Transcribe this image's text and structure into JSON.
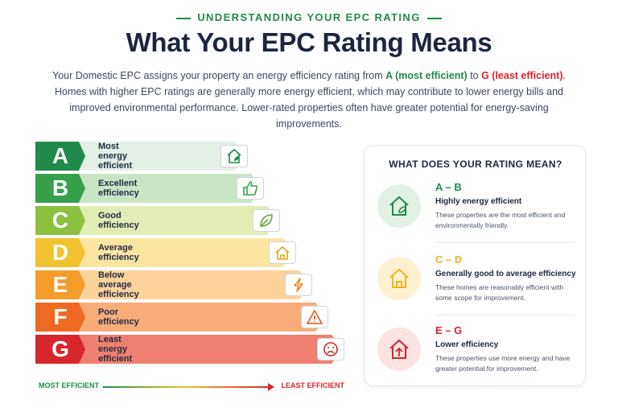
{
  "header": {
    "eyebrow": "UNDERSTANDING YOUR EPC RATING",
    "title": "What Your EPC Rating Means",
    "intro_1": "Your Domestic EPC assigns your property an energy efficiency rating from ",
    "intro_a": "A (most efficient)",
    "intro_to": " to ",
    "intro_g": "G (least efficient)",
    "intro_2": ". Homes with higher EPC ratings are generally more energy efficient, which may contribute to lower energy bills and improved environmental performance. Lower-rated properties often have greater potential for energy-saving improvements."
  },
  "ratings": [
    {
      "letter": "A",
      "label": "Most energy efficient",
      "color": "#1f8a4a",
      "light": "#e4f0e6",
      "icon": "house-leaf-icon"
    },
    {
      "letter": "B",
      "label": "Excellent efficiency",
      "color": "#37a04a",
      "light": "#c9e5c6",
      "icon": "thumbs-up-icon"
    },
    {
      "letter": "C",
      "label": "Good efficiency",
      "color": "#8bc13f",
      "light": "#e1edb4",
      "icon": "leaf-icon"
    },
    {
      "letter": "D",
      "label": "Average efficiency",
      "color": "#f2c230",
      "light": "#fbe6a1",
      "icon": "house-icon"
    },
    {
      "letter": "E",
      "label": "Below average efficiency",
      "color": "#f49b2a",
      "light": "#fcd39a",
      "icon": "lightning-icon"
    },
    {
      "letter": "F",
      "label": "Poor efficiency",
      "color": "#ee6a22",
      "light": "#f8ac78",
      "icon": "warning-icon"
    },
    {
      "letter": "G",
      "label": "Least energy efficient",
      "color": "#d7262c",
      "light": "#ef7f70",
      "icon": "sad-face-icon"
    }
  ],
  "scale": {
    "left": "MOST EFFICIENT",
    "right": "LEAST EFFICIENT"
  },
  "panel": {
    "title": "WHAT DOES YOUR RATING MEAN?",
    "groups": [
      {
        "band": "A – B",
        "subtitle": "Highly energy efficient",
        "desc": "These properties are the most efficient and environmentally friendly.",
        "color": "#1f8a4a",
        "bg": "#e3f1e5",
        "icon": "house-leaf-icon"
      },
      {
        "band": "C – D",
        "subtitle": "Generally good to average efficiency",
        "desc": "These homes are reasonably efficient with some scope for improvement.",
        "color": "#f2b318",
        "bg": "#fdf1d2",
        "icon": "house-icon"
      },
      {
        "band": "E – G",
        "subtitle": "Lower efficiency",
        "desc": "These properties use more energy and have greater potential for improvement.",
        "color": "#d7262c",
        "bg": "#fbe3e2",
        "icon": "house-up-arrow-icon"
      }
    ]
  }
}
